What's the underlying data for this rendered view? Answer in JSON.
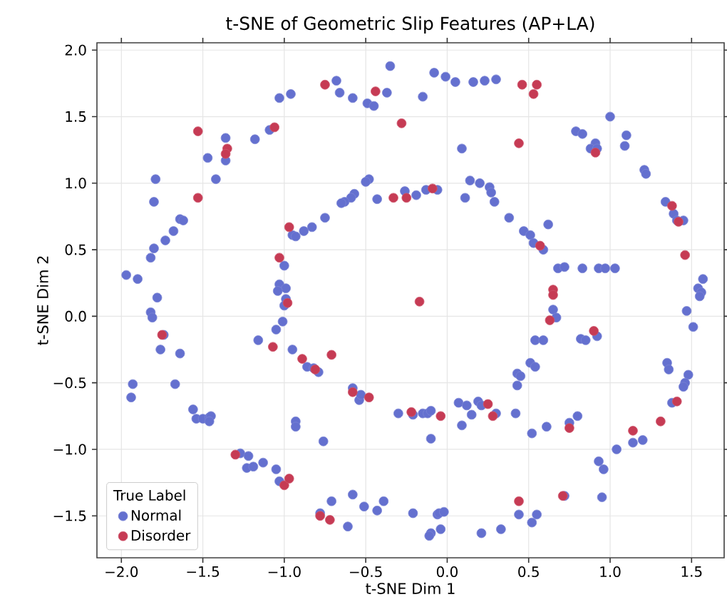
{
  "chart_data": {
    "type": "scatter",
    "title": "t-SNE of Geometric Slip Features (AP+LA)",
    "xlabel": "t-SNE Dim 1",
    "ylabel": "t-SNE Dim 2",
    "legend_title": "True Label",
    "xlim": [
      -2.15,
      1.7
    ],
    "ylim": [
      -1.815,
      2.055
    ],
    "xticks": [
      {
        "value": -2.0,
        "label": "−2.0"
      },
      {
        "value": -1.5,
        "label": "−1.5"
      },
      {
        "value": -1.0,
        "label": "−1.0"
      },
      {
        "value": -0.5,
        "label": "−0.5"
      },
      {
        "value": 0.0,
        "label": "0.0"
      },
      {
        "value": 0.5,
        "label": "0.5"
      },
      {
        "value": 1.0,
        "label": "1.0"
      },
      {
        "value": 1.5,
        "label": "1.5"
      }
    ],
    "yticks": [
      {
        "value": -1.5,
        "label": "−1.5"
      },
      {
        "value": -1.0,
        "label": "−1.0"
      },
      {
        "value": -0.5,
        "label": "−0.5"
      },
      {
        "value": 0.0,
        "label": "0.0"
      },
      {
        "value": 0.5,
        "label": "0.5"
      },
      {
        "value": 1.0,
        "label": "1.0"
      },
      {
        "value": 1.5,
        "label": "1.5"
      },
      {
        "value": 2.0,
        "label": "2.0"
      }
    ],
    "grid": true,
    "legend": "bottom left",
    "marker": "circle",
    "series": [
      {
        "name": "Normal",
        "color": "#6470cf",
        "x": [
          -1.03,
          -0.96,
          -1.36,
          -1.18,
          -1.09,
          -1.47,
          -1.36,
          -1.42,
          -1.79,
          -1.8,
          -1.64,
          -1.62,
          -1.68,
          -1.73,
          -1.8,
          -1.82,
          -1.97,
          -1.9,
          -1.78,
          -1.82,
          -1.81,
          -1.0,
          -1.03,
          -0.99,
          -1.04,
          -0.99,
          -1.0,
          -1.01,
          -1.05,
          -1.16,
          -1.74,
          -0.95,
          -0.93,
          -0.88,
          -0.83,
          -0.68,
          -0.66,
          -0.58,
          -0.49,
          -0.45,
          -0.37,
          -0.35,
          -0.15,
          -0.08,
          -0.01,
          0.05,
          0.16,
          0.23,
          0.3,
          0.09,
          -0.48,
          -0.5,
          -0.57,
          -0.59,
          -0.63,
          -0.65,
          -0.75,
          -0.43,
          -0.26,
          -0.19,
          -0.13,
          -0.06,
          0.14,
          0.2,
          0.11,
          0.26,
          0.27,
          0.29,
          0.38,
          0.47,
          1.0,
          0.79,
          0.83,
          0.91,
          0.88,
          0.92,
          1.1,
          1.09,
          1.21,
          1.22,
          1.34,
          1.39,
          1.41,
          1.45,
          0.62,
          0.51,
          0.53,
          0.59,
          0.68,
          0.72,
          0.83,
          0.93,
          0.97,
          1.03,
          1.57,
          1.54,
          1.56,
          1.55,
          1.47,
          1.51,
          0.65,
          0.67,
          0.54,
          0.59,
          0.82,
          0.85,
          0.92,
          -1.76,
          -1.64,
          -0.95,
          -0.86,
          -1.93,
          -1.94,
          -1.67,
          -1.56,
          -1.54,
          -1.5,
          -1.46,
          -1.45,
          -1.46,
          -0.93,
          -0.93,
          -1.27,
          -1.22,
          -1.23,
          -1.19,
          -1.13,
          -1.05,
          -1.03,
          -0.82,
          -0.79,
          -0.58,
          -0.54,
          -0.53,
          -0.3,
          -0.21,
          -0.15,
          -0.12,
          -0.1,
          -0.1,
          0.07,
          0.12,
          0.15,
          0.09,
          0.19,
          0.21,
          0.3,
          0.42,
          -0.76,
          -0.78,
          -0.71,
          -0.58,
          -0.61,
          -0.51,
          -0.43,
          -0.39,
          -0.21,
          -0.06,
          -0.05,
          -0.02,
          -0.04,
          -0.1,
          -0.11,
          0.21,
          0.33,
          0.44,
          0.51,
          0.54,
          0.43,
          0.45,
          0.43,
          0.52,
          0.61,
          0.75,
          0.8,
          1.35,
          1.36,
          1.48,
          1.46,
          1.45,
          1.38,
          1.14,
          1.2,
          1.04,
          0.93,
          0.96,
          0.95,
          0.72,
          0.52,
          0.55
        ],
        "values": [
          1.64,
          1.67,
          1.34,
          1.33,
          1.4,
          1.19,
          1.17,
          1.03,
          1.03,
          0.86,
          0.73,
          0.72,
          0.64,
          0.57,
          0.51,
          0.44,
          0.31,
          0.28,
          0.14,
          0.03,
          -0.01,
          0.38,
          0.24,
          0.21,
          0.19,
          0.13,
          0.08,
          -0.04,
          -0.1,
          -0.18,
          -0.14,
          0.61,
          0.6,
          0.64,
          0.67,
          1.77,
          1.68,
          1.64,
          1.6,
          1.58,
          1.68,
          1.88,
          1.65,
          1.83,
          1.8,
          1.76,
          1.76,
          1.77,
          1.78,
          1.26,
          1.03,
          1.01,
          0.92,
          0.89,
          0.86,
          0.85,
          0.74,
          0.88,
          0.94,
          0.91,
          0.95,
          0.95,
          1.02,
          1.0,
          0.89,
          0.97,
          0.93,
          0.86,
          0.74,
          0.64,
          1.5,
          1.39,
          1.37,
          1.3,
          1.26,
          1.26,
          1.36,
          1.28,
          1.1,
          1.07,
          0.86,
          0.77,
          0.72,
          0.72,
          0.69,
          0.61,
          0.55,
          0.5,
          0.36,
          0.37,
          0.36,
          0.36,
          0.36,
          0.36,
          0.28,
          0.21,
          0.18,
          0.15,
          0.04,
          -0.08,
          0.05,
          -0.01,
          -0.18,
          -0.18,
          -0.17,
          -0.18,
          -0.15,
          -0.25,
          -0.28,
          -0.25,
          -0.38,
          -0.51,
          -0.61,
          -0.51,
          -0.7,
          -0.77,
          -0.77,
          -0.76,
          -0.75,
          -0.79,
          -0.79,
          -0.83,
          -1.03,
          -1.05,
          -1.14,
          -1.13,
          -1.1,
          -1.15,
          -1.24,
          -0.39,
          -0.42,
          -0.54,
          -0.63,
          -0.59,
          -0.73,
          -0.74,
          -0.73,
          -0.73,
          -0.71,
          -0.92,
          -0.65,
          -0.67,
          -0.74,
          -0.82,
          -0.64,
          -0.67,
          -0.73,
          -0.73,
          -0.94,
          -1.48,
          -1.39,
          -1.34,
          -1.58,
          -1.43,
          -1.46,
          -1.39,
          -1.48,
          -1.49,
          -1.48,
          -1.47,
          -1.6,
          -1.63,
          -1.65,
          -1.63,
          -1.6,
          -1.49,
          -0.35,
          -0.38,
          -0.43,
          -0.45,
          -0.52,
          -0.88,
          -0.83,
          -0.8,
          -0.75,
          -0.35,
          -0.4,
          -0.44,
          -0.5,
          -0.53,
          -0.65,
          -0.95,
          -0.93,
          -1.0,
          -1.09,
          -1.15,
          -1.36,
          -1.35,
          -1.55,
          -1.49
        ]
      },
      {
        "name": "Disorder",
        "color": "#c63b54",
        "x": [
          -1.53,
          -1.35,
          -1.36,
          -1.53,
          -1.06,
          -0.97,
          -1.03,
          -0.98,
          -1.75,
          -0.75,
          -0.44,
          -0.28,
          -0.33,
          -0.25,
          -0.09,
          -0.17,
          0.44,
          0.46,
          0.55,
          0.53,
          0.91,
          1.38,
          1.42,
          1.46,
          0.65,
          0.65,
          0.63,
          0.9,
          0.57,
          -1.07,
          -0.89,
          -1.3,
          -1.0,
          -0.97,
          -0.81,
          -0.71,
          -0.58,
          -0.48,
          -0.22,
          -0.04,
          0.25,
          0.28,
          -0.78,
          -0.72,
          0.44,
          1.41,
          1.31,
          1.14,
          0.75,
          0.71
        ],
        "values": [
          1.39,
          1.26,
          1.22,
          0.89,
          1.42,
          0.67,
          0.44,
          0.1,
          -0.14,
          1.74,
          1.69,
          1.45,
          0.89,
          0.89,
          0.96,
          0.11,
          1.3,
          1.74,
          1.74,
          1.67,
          1.23,
          0.83,
          0.71,
          0.46,
          0.2,
          0.16,
          -0.03,
          -0.11,
          0.53,
          -0.23,
          -0.32,
          -1.04,
          -1.27,
          -1.22,
          -0.4,
          -0.29,
          -0.57,
          -0.61,
          -0.72,
          -0.75,
          -0.66,
          -0.75,
          -1.5,
          -1.53,
          -1.39,
          -0.64,
          -0.79,
          -0.86,
          -0.84,
          -1.35
        ]
      }
    ]
  }
}
